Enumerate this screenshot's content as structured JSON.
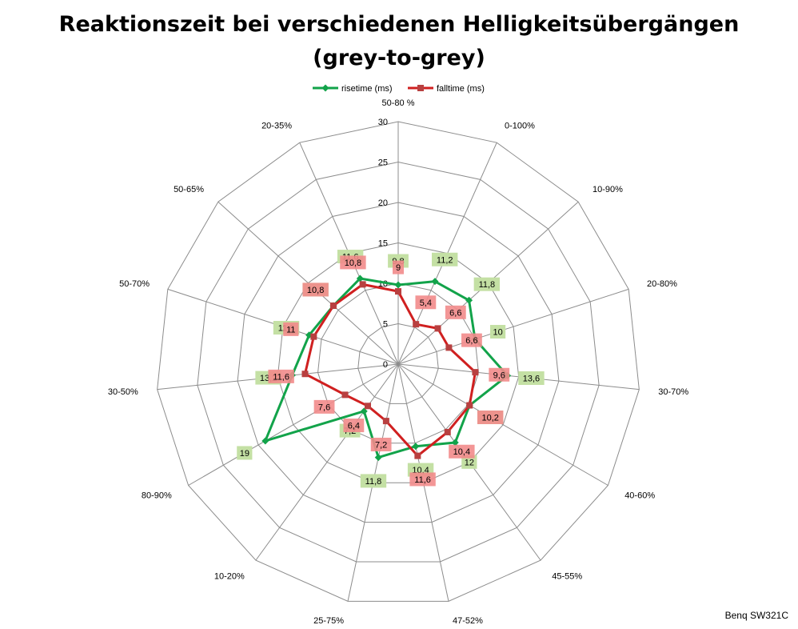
{
  "chart_data": {
    "type": "radar",
    "title": "Reaktionszeit bei verschiedenen Helligkeitsübergängen",
    "subtitle": "(grey-to-grey)",
    "categories": [
      "50-80 %",
      "0-100%",
      "10-90%",
      "20-80%",
      "30-70%",
      "40-60%",
      "45-55%",
      "47-52%",
      "25-75%",
      "10-20%",
      "80-90%",
      "30-50%",
      "50-70%",
      "50-65%",
      "20-35%"
    ],
    "r_ticks": [
      "0",
      "5",
      "10",
      "15",
      "20",
      "25",
      "30"
    ],
    "r_range": [
      0,
      30
    ],
    "grid": true,
    "legend_position": "top",
    "series": [
      {
        "name": "risetime (ms)",
        "color": "#12a34a",
        "label_bg": "#c4e0a4",
        "values": [
          9.8,
          11.2,
          11.8,
          10,
          13.6,
          10.2,
          12,
          10.4,
          11.8,
          7.2,
          19,
          13.2,
          11.6,
          10.8,
          11.6
        ],
        "labels": [
          "9,8",
          "11,2",
          "11,8",
          "10",
          "13,6",
          "10,2",
          "12",
          "10,4",
          "11,8",
          "7,2",
          "19",
          "13,2",
          "11,6",
          "10,8",
          "11,6"
        ]
      },
      {
        "name": "falltime (ms)",
        "color": "#d02020",
        "label_bg": "#f28b8b",
        "values": [
          9,
          5.4,
          6.6,
          6.6,
          9.6,
          10.2,
          10.4,
          11.6,
          7.2,
          6.4,
          7.6,
          11.6,
          11,
          10.8,
          10.8
        ],
        "labels": [
          "9",
          "5,4",
          "6,6",
          "6,6",
          "9,6",
          "10,2",
          "10,4",
          "11,6",
          "7,2",
          "6,4",
          "7,6",
          "11,6",
          "11",
          "10,8",
          "10,8"
        ]
      }
    ]
  },
  "footer": {
    "label": "Benq SW321C"
  }
}
